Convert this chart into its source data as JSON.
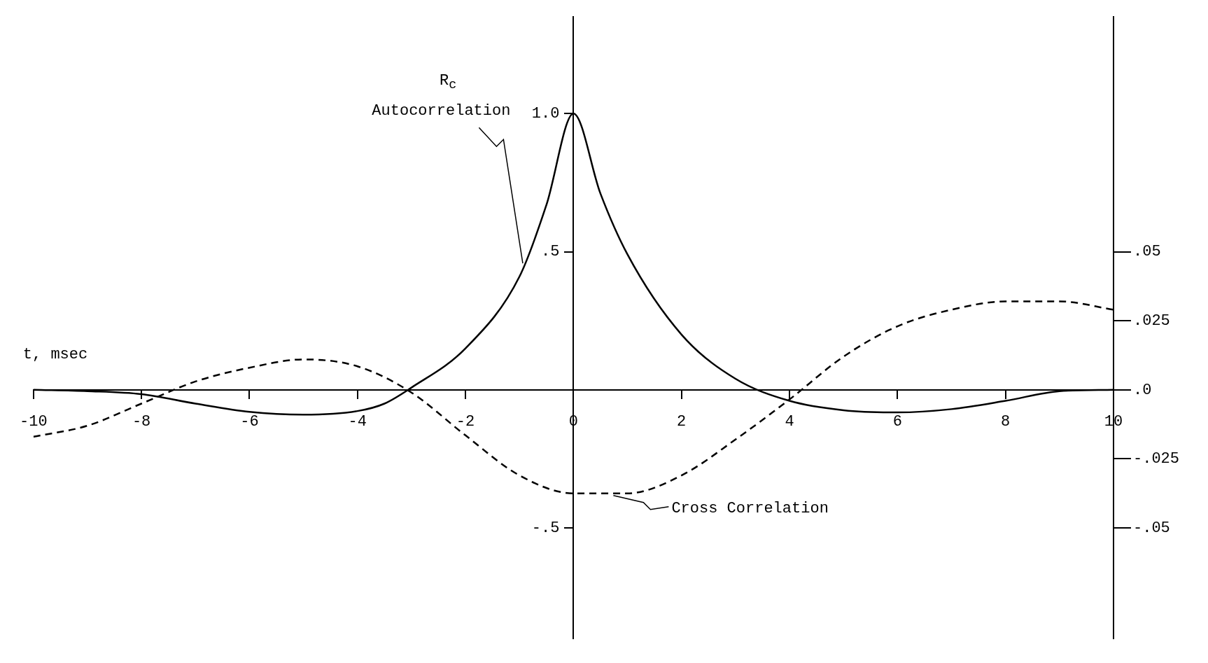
{
  "chart_data": {
    "type": "line",
    "xlabel": "t, msec",
    "ylabel": "R$_{c}$",
    "xlim": [
      -10,
      10
    ],
    "xticks": [
      -10,
      -8,
      -6,
      -4,
      -2,
      0,
      2,
      4,
      6,
      8,
      10
    ],
    "ylim": [
      -0.9,
      1.35
    ],
    "yticks": [
      {
        "value": -0.5,
        "label": "-.5"
      },
      {
        "value": 0.5,
        "label": ".5"
      },
      {
        "value": 1,
        "label": "1.0"
      }
    ],
    "y2lim": [
      -0.09,
      0.135
    ],
    "y2ticks": [
      {
        "value": -0.05,
        "label": "-.05"
      },
      {
        "value": -0.025,
        "label": "-.025"
      },
      {
        "value": 0,
        "label": ".0"
      },
      {
        "value": 0.025,
        "label": ".025"
      },
      {
        "value": 0.05,
        "label": ".05"
      }
    ],
    "grid": false,
    "legend": false,
    "marker": "none",
    "x": [
      -10,
      -9,
      -8,
      -7,
      -6,
      -5,
      -4,
      -3.5,
      -3,
      -2,
      -1,
      -0.5,
      0,
      0.5,
      1,
      2,
      3,
      4,
      5,
      6,
      7,
      8,
      9,
      10
    ],
    "series": [
      {
        "type": "line",
        "color": "#000000",
        "line_style": "solid",
        "values": [
          0,
          -0.005,
          -0.016,
          -0.05,
          -0.08,
          -0.09,
          -0.077,
          -0.05,
          0.008,
          0.15,
          0.41,
          0.67,
          1.0,
          0.71,
          0.49,
          0.2,
          0.04,
          -0.04,
          -0.074,
          -0.082,
          -0.07,
          -0.04,
          -0.005,
          0
        ]
      },
      {
        "type": "line",
        "color": "#000000",
        "line_style": "dashed",
        "axis": "y2",
        "x": [
          -10,
          -9,
          -8,
          -7,
          -6,
          -5,
          -4,
          -3,
          -2,
          -1,
          0,
          1,
          2,
          3,
          4,
          5,
          6,
          7,
          8,
          9,
          10
        ],
        "values": [
          -0.017,
          -0.013,
          -0.005,
          0.003,
          0.008,
          0.011,
          0.0085,
          -0.001,
          -0.0165,
          -0.031,
          -0.0375,
          -0.0375,
          -0.031,
          -0.018,
          -0.0035,
          0.012,
          0.023,
          0.029,
          0.032,
          0.032,
          0.029
        ]
      }
    ],
    "annotations": [
      {
        "text": "Autocorrelation",
        "x": -0.9,
        "y": 0.45
      },
      {
        "text": "Cross Correlation",
        "x": 0.7,
        "y": -0.375
      }
    ]
  }
}
